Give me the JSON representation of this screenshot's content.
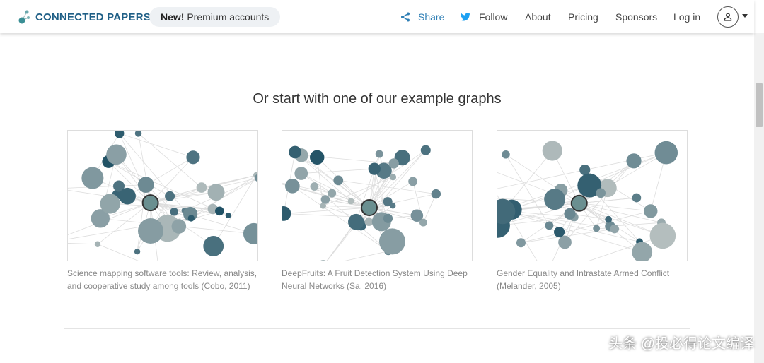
{
  "header": {
    "brand": "CONNECTED PAPERS",
    "promo_new": "New!",
    "promo_text": "Premium accounts",
    "nav": {
      "share": "Share",
      "follow": "Follow",
      "about": "About",
      "pricing": "Pricing",
      "sponsors": "Sponsors",
      "login": "Log in"
    },
    "brand_color": "#1f5f86",
    "share_color": "#2f7fb5",
    "twitter_color": "#1da1f2"
  },
  "main": {
    "heading": "Or start with one of our example graphs",
    "examples": [
      {
        "caption": "Science mapping software tools: Review, analysis, and cooperative study among tools (Cobo, 2011)"
      },
      {
        "caption": "DeepFruits: A Fruit Detection System Using Deep Neural Networks (Sa, 2016)"
      },
      {
        "caption": "Gender Equality and Intrastate Armed Conflict (Melander, 2005)"
      }
    ]
  },
  "watermark": "头条 @投必得论文编译"
}
